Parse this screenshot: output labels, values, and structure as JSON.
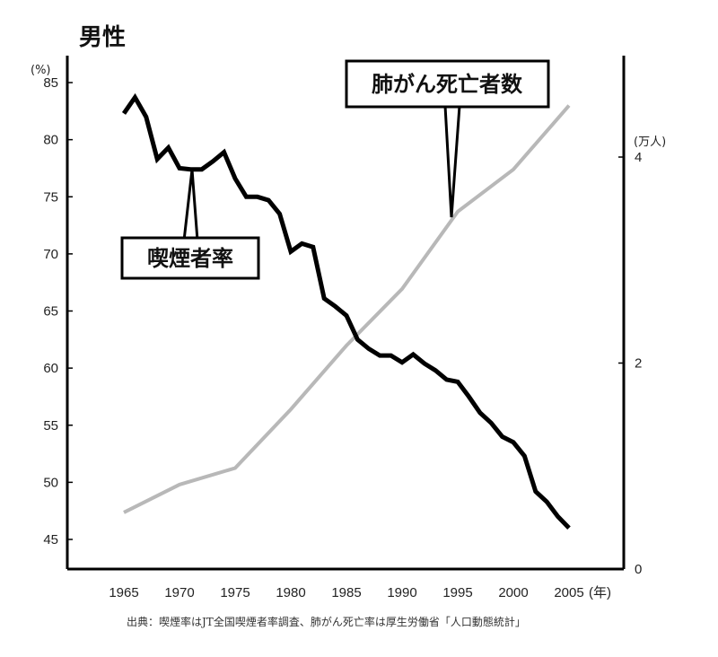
{
  "chart_data": {
    "type": "line",
    "title": "男性",
    "left_axis_unit": "(%)",
    "right_axis_unit": "(万人)",
    "x_unit": "(年)",
    "xlim": [
      1965,
      2005
    ],
    "ylim_left": [
      45,
      85
    ],
    "ylim_right": [
      0,
      4
    ],
    "x_ticks": [
      1965,
      1970,
      1975,
      1980,
      1985,
      1990,
      1995,
      2000,
      2005
    ],
    "y_left_ticks": [
      45,
      50,
      55,
      60,
      65,
      70,
      75,
      80,
      85
    ],
    "y_right_ticks": [
      0,
      2,
      4
    ],
    "series": [
      {
        "name": "喫煙者率",
        "axis": "left",
        "color": "#000000",
        "x": [
          1965,
          1966,
          1967,
          1968,
          1969,
          1970,
          1971,
          1972,
          1973,
          1974,
          1975,
          1976,
          1977,
          1978,
          1979,
          1980,
          1981,
          1982,
          1983,
          1984,
          1985,
          1986,
          1987,
          1988,
          1989,
          1990,
          1991,
          1992,
          1993,
          1994,
          1995,
          1996,
          1997,
          1998,
          1999,
          2000,
          2001,
          2002,
          2003,
          2004,
          2005
        ],
        "values": [
          82.3,
          83.7,
          82.0,
          78.3,
          79.3,
          77.5,
          77.4,
          77.4,
          78.1,
          78.9,
          76.6,
          75.0,
          75.0,
          74.7,
          73.5,
          70.2,
          70.9,
          70.6,
          66.1,
          65.4,
          64.6,
          62.5,
          61.7,
          61.1,
          61.1,
          60.5,
          61.2,
          60.4,
          59.8,
          59.0,
          58.8,
          57.5,
          56.1,
          55.2,
          54.0,
          53.5,
          52.3,
          49.2,
          48.3,
          47.0,
          46.0
        ]
      },
      {
        "name": "肺がん死亡者数",
        "axis": "right",
        "color": "#b8b8b8",
        "x": [
          1965,
          1970,
          1975,
          1980,
          1985,
          1990,
          1995,
          2000,
          2005
        ],
        "values": [
          0.55,
          0.82,
          0.98,
          1.55,
          2.17,
          2.72,
          3.47,
          3.88,
          4.5
        ]
      }
    ],
    "source": "出典：喫煙率はJT全国喫煙者率調査、肺がん死亡率は厚生労働省「人口動態統計」"
  }
}
